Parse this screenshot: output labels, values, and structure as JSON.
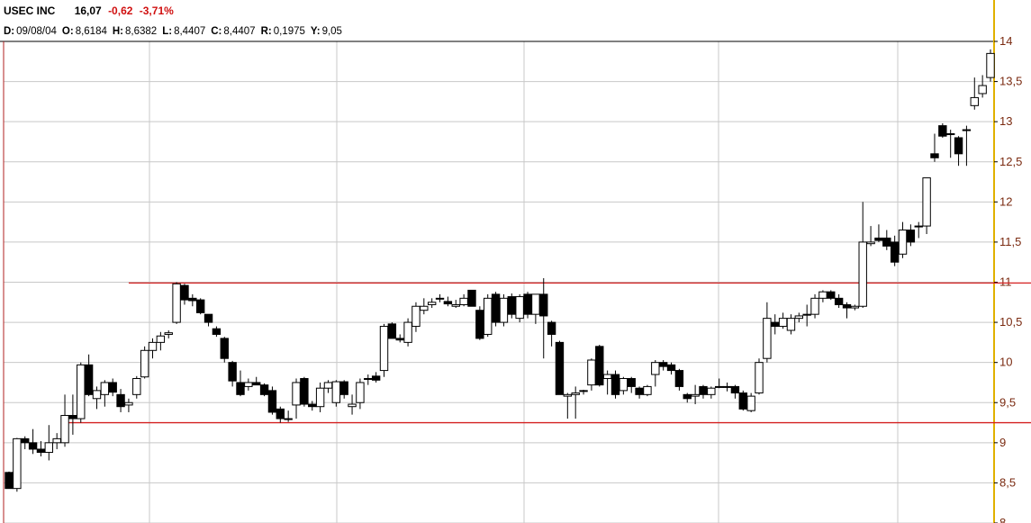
{
  "header": {
    "symbol": "USEC INC",
    "last": "16,07",
    "change": "-0,62",
    "change_pct": "-3,71%",
    "ohlc": [
      {
        "label": "D:",
        "value": "09/08/04"
      },
      {
        "label": "O:",
        "value": "8,6184"
      },
      {
        "label": "H:",
        "value": "8,6382"
      },
      {
        "label": "L:",
        "value": "8,4407"
      },
      {
        "label": "C:",
        "value": "8,4407"
      },
      {
        "label": "R:",
        "value": "0,1975"
      },
      {
        "label": "Y:",
        "value": "9,05"
      }
    ]
  },
  "colors": {
    "up_fill": "#ffffff",
    "down_fill": "#000000",
    "candle_stroke": "#000000",
    "resistance_line": "#d42020",
    "grid": "#c8c8c8",
    "axis_label": "#7a2a10",
    "axis_line": "#e0b000"
  },
  "chart_data": {
    "type": "candlestick",
    "ylim": [
      8,
      14
    ],
    "y_ticks": [
      {
        "value": 14,
        "label": "14"
      },
      {
        "value": 13.5,
        "label": "13,5"
      },
      {
        "value": 13,
        "label": "13"
      },
      {
        "value": 12.5,
        "label": "12,5"
      },
      {
        "value": 12,
        "label": "12"
      },
      {
        "value": 11.5,
        "label": "11,5"
      },
      {
        "value": 11,
        "label": "11"
      },
      {
        "value": 10.5,
        "label": "10,5"
      },
      {
        "value": 10,
        "label": "10"
      },
      {
        "value": 9.5,
        "label": "9,5"
      },
      {
        "value": 9,
        "label": "9"
      },
      {
        "value": 8.5,
        "label": "8,5"
      },
      {
        "value": 8,
        "label": "8"
      }
    ],
    "grid": true,
    "horizontal_lines": [
      {
        "name": "resistance",
        "value": 10.99,
        "from_bar": 15,
        "to_bar": 163
      },
      {
        "name": "support",
        "value": 9.25,
        "from_bar": 7,
        "to_bar": 170
      }
    ],
    "ohlc": [
      [
        8.63,
        8.64,
        8.43,
        8.43
      ],
      [
        8.43,
        9.06,
        8.39,
        9.05
      ],
      [
        9.05,
        9.08,
        8.92,
        9.0
      ],
      [
        9.0,
        9.17,
        8.86,
        8.92
      ],
      [
        8.92,
        9.02,
        8.83,
        8.88
      ],
      [
        8.88,
        9.22,
        8.78,
        9.0
      ],
      [
        9.0,
        9.12,
        8.92,
        9.05
      ],
      [
        9.0,
        9.6,
        8.95,
        9.34
      ],
      [
        9.34,
        9.6,
        9.1,
        9.3
      ],
      [
        9.3,
        10.0,
        9.25,
        9.97
      ],
      [
        9.97,
        10.1,
        9.58,
        9.6
      ],
      [
        9.55,
        9.7,
        9.42,
        9.65
      ],
      [
        9.6,
        9.78,
        9.45,
        9.75
      ],
      [
        9.75,
        9.8,
        9.58,
        9.63
      ],
      [
        9.6,
        9.67,
        9.38,
        9.45
      ],
      [
        9.47,
        9.55,
        9.38,
        9.5
      ],
      [
        9.6,
        9.83,
        9.55,
        9.8
      ],
      [
        9.82,
        10.2,
        9.8,
        10.15
      ],
      [
        10.15,
        10.3,
        10.05,
        10.25
      ],
      [
        10.25,
        10.38,
        10.15,
        10.33
      ],
      [
        10.35,
        10.4,
        10.3,
        10.37
      ],
      [
        10.5,
        11.0,
        10.48,
        10.98
      ],
      [
        10.96,
        10.98,
        10.72,
        10.78
      ],
      [
        10.8,
        10.85,
        10.7,
        10.77
      ],
      [
        10.78,
        10.8,
        10.6,
        10.62
      ],
      [
        10.6,
        10.6,
        10.45,
        10.5
      ],
      [
        10.42,
        10.45,
        10.32,
        10.35
      ],
      [
        10.3,
        10.32,
        10.0,
        10.05
      ],
      [
        10.0,
        10.02,
        9.7,
        9.77
      ],
      [
        9.75,
        9.9,
        9.58,
        9.6
      ],
      [
        9.7,
        9.8,
        9.65,
        9.75
      ],
      [
        9.75,
        9.82,
        9.72,
        9.72
      ],
      [
        9.72,
        9.74,
        9.58,
        9.6
      ],
      [
        9.65,
        9.7,
        9.35,
        9.38
      ],
      [
        9.42,
        9.45,
        9.25,
        9.3
      ],
      [
        9.3,
        9.4,
        9.26,
        9.3
      ],
      [
        9.47,
        9.8,
        9.3,
        9.75
      ],
      [
        9.8,
        9.82,
        9.45,
        9.48
      ],
      [
        9.48,
        9.52,
        9.4,
        9.45
      ],
      [
        9.45,
        9.75,
        9.38,
        9.68
      ],
      [
        9.68,
        9.78,
        9.62,
        9.75
      ],
      [
        9.5,
        9.78,
        9.45,
        9.76
      ],
      [
        9.76,
        9.78,
        9.55,
        9.6
      ],
      [
        9.45,
        9.6,
        9.35,
        9.48
      ],
      [
        9.5,
        9.8,
        9.42,
        9.75
      ],
      [
        9.8,
        9.85,
        9.72,
        9.8
      ],
      [
        9.83,
        9.88,
        9.75,
        9.78
      ],
      [
        9.9,
        10.48,
        9.82,
        10.45
      ],
      [
        10.48,
        10.5,
        10.3,
        10.3
      ],
      [
        10.3,
        10.35,
        10.25,
        10.28
      ],
      [
        10.25,
        10.55,
        10.2,
        10.5
      ],
      [
        10.45,
        10.75,
        10.38,
        10.7
      ],
      [
        10.65,
        10.8,
        10.6,
        10.7
      ],
      [
        10.72,
        10.8,
        10.68,
        10.75
      ],
      [
        10.8,
        10.85,
        10.75,
        10.8
      ],
      [
        10.76,
        10.82,
        10.7,
        10.73
      ],
      [
        10.7,
        10.78,
        10.68,
        10.72
      ],
      [
        10.72,
        10.85,
        10.7,
        10.8
      ],
      [
        10.9,
        10.9,
        10.7,
        10.7
      ],
      [
        10.65,
        10.7,
        10.28,
        10.3
      ],
      [
        10.35,
        10.85,
        10.32,
        10.8
      ],
      [
        10.85,
        10.88,
        10.45,
        10.5
      ],
      [
        10.5,
        10.85,
        10.45,
        10.8
      ],
      [
        10.82,
        10.86,
        10.55,
        10.6
      ],
      [
        10.55,
        10.85,
        10.5,
        10.82
      ],
      [
        10.85,
        10.88,
        10.55,
        10.6
      ],
      [
        10.6,
        10.85,
        10.48,
        10.85
      ],
      [
        10.85,
        11.05,
        10.05,
        10.58
      ],
      [
        10.5,
        10.52,
        10.2,
        10.35
      ],
      [
        10.25,
        10.27,
        9.6,
        9.6
      ],
      [
        9.58,
        9.62,
        9.3,
        9.6
      ],
      [
        9.6,
        9.7,
        9.3,
        9.62
      ],
      [
        9.65,
        9.66,
        9.6,
        9.65
      ],
      [
        9.72,
        10.05,
        9.65,
        10.03
      ],
      [
        10.2,
        10.22,
        9.7,
        9.72
      ],
      [
        9.8,
        9.9,
        9.6,
        9.85
      ],
      [
        9.85,
        9.9,
        9.55,
        9.6
      ],
      [
        9.65,
        9.82,
        9.6,
        9.8
      ],
      [
        9.8,
        9.82,
        9.62,
        9.7
      ],
      [
        9.68,
        9.7,
        9.55,
        9.6
      ],
      [
        9.6,
        9.72,
        9.58,
        9.7
      ],
      [
        9.85,
        10.03,
        9.7,
        10.0
      ],
      [
        10.0,
        10.03,
        9.9,
        9.95
      ],
      [
        9.97,
        10.0,
        9.85,
        9.9
      ],
      [
        9.9,
        9.92,
        9.65,
        9.7
      ],
      [
        9.6,
        9.62,
        9.5,
        9.55
      ],
      [
        9.58,
        9.72,
        9.48,
        9.6
      ],
      [
        9.7,
        9.72,
        9.55,
        9.6
      ],
      [
        9.6,
        9.7,
        9.55,
        9.68
      ],
      [
        9.7,
        9.8,
        9.68,
        9.7
      ],
      [
        9.7,
        9.75,
        9.64,
        9.7
      ],
      [
        9.7,
        9.72,
        9.55,
        9.62
      ],
      [
        9.62,
        9.65,
        9.4,
        9.42
      ],
      [
        9.4,
        9.62,
        9.38,
        9.58
      ],
      [
        9.62,
        10.05,
        9.6,
        10.0
      ],
      [
        10.05,
        10.75,
        10.0,
        10.55
      ],
      [
        10.5,
        10.6,
        10.35,
        10.45
      ],
      [
        10.45,
        10.62,
        10.42,
        10.55
      ],
      [
        10.4,
        10.6,
        10.35,
        10.55
      ],
      [
        10.55,
        10.62,
        10.5,
        10.58
      ],
      [
        10.6,
        10.72,
        10.45,
        10.6
      ],
      [
        10.6,
        10.85,
        10.55,
        10.8
      ],
      [
        10.8,
        10.9,
        10.75,
        10.88
      ],
      [
        10.88,
        10.9,
        10.78,
        10.8
      ],
      [
        10.8,
        10.85,
        10.68,
        10.72
      ],
      [
        10.72,
        10.75,
        10.55,
        10.68
      ],
      [
        10.68,
        10.72,
        10.65,
        10.7
      ],
      [
        10.7,
        12.0,
        10.68,
        11.5
      ],
      [
        11.48,
        11.7,
        11.45,
        11.5
      ],
      [
        11.55,
        11.72,
        11.5,
        11.52
      ],
      [
        11.55,
        11.65,
        11.4,
        11.45
      ],
      [
        11.5,
        11.58,
        11.2,
        11.25
      ],
      [
        11.35,
        11.75,
        11.3,
        11.65
      ],
      [
        11.65,
        11.72,
        11.45,
        11.5
      ],
      [
        11.7,
        11.75,
        11.55,
        11.7
      ],
      [
        11.7,
        12.3,
        11.6,
        12.3
      ],
      [
        12.6,
        12.85,
        12.5,
        12.55
      ],
      [
        12.95,
        12.98,
        12.8,
        12.82
      ],
      [
        12.85,
        12.9,
        12.55,
        12.85
      ],
      [
        12.8,
        12.82,
        12.45,
        12.6
      ],
      [
        12.9,
        12.95,
        12.45,
        12.9
      ],
      [
        13.2,
        13.55,
        13.15,
        13.3
      ],
      [
        13.35,
        13.58,
        13.3,
        13.45
      ],
      [
        13.55,
        13.9,
        13.5,
        13.85
      ]
    ]
  }
}
